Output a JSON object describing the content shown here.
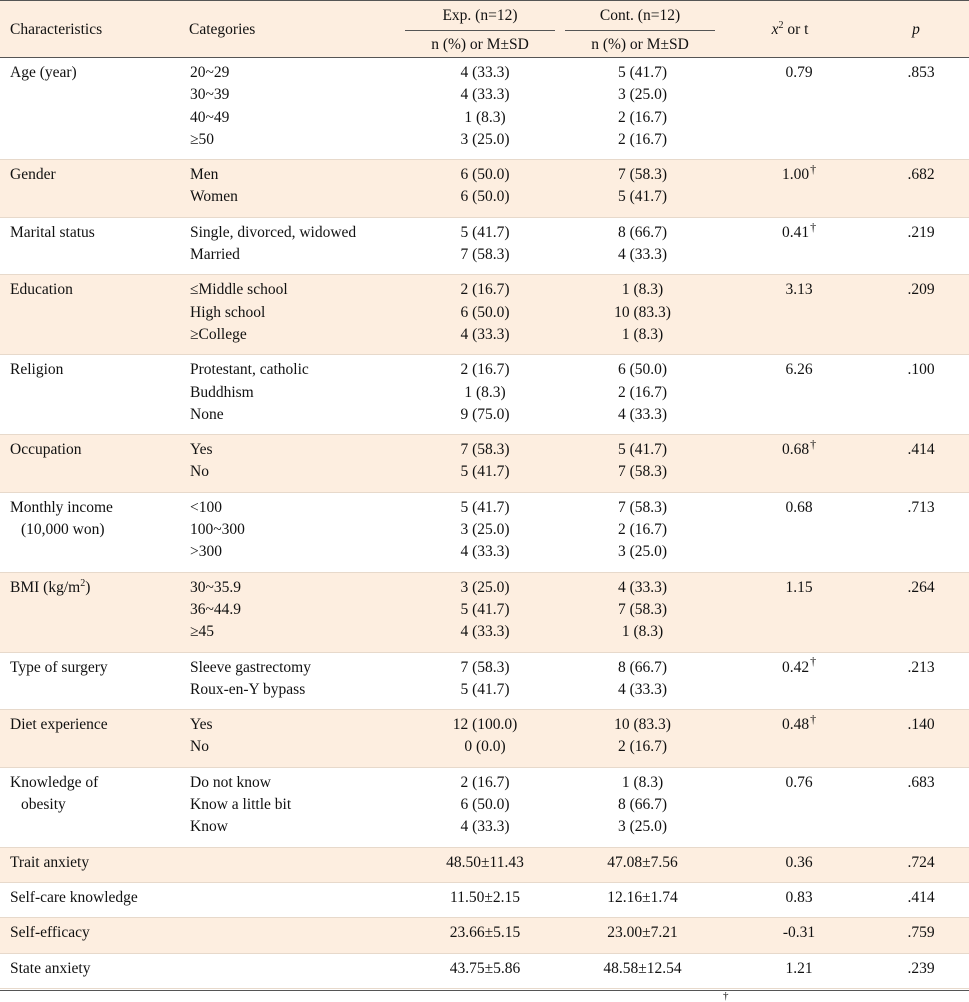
{
  "header": {
    "characteristics": "Characteristics",
    "categories": "Categories",
    "exp": "Exp. (n=12)",
    "cont": "Cont. (n=12)",
    "sub_exp": "n (%) or M±SD",
    "sub_cont": "n (%) or M±SD",
    "stat_x": "x",
    "stat_sup": "2",
    "stat_rest": " or t",
    "p": "p"
  },
  "rows": [
    {
      "char": [
        "Age (year)"
      ],
      "cats": [
        "20~29",
        "30~39",
        "40~49",
        "≥50"
      ],
      "exp": [
        "4 (33.3)",
        "4 (33.3)",
        "1 (8.3)",
        "3 (25.0)"
      ],
      "cont": [
        "5 (41.7)",
        "3 (25.0)",
        "2 (16.7)",
        "2 (16.7)"
      ],
      "stat": "0.79",
      "dagger": "",
      "p": ".853",
      "shade": false
    },
    {
      "char": [
        "Gender"
      ],
      "cats": [
        "Men",
        "Women"
      ],
      "exp": [
        "6 (50.0)",
        "6 (50.0)"
      ],
      "cont": [
        "7 (58.3)",
        "5 (41.7)"
      ],
      "stat": "1.00",
      "dagger": "†",
      "p": ".682",
      "shade": true
    },
    {
      "char": [
        "Marital status"
      ],
      "cats": [
        "Single, divorced, widowed",
        "Married"
      ],
      "exp": [
        "5 (41.7)",
        "7 (58.3)"
      ],
      "cont": [
        "8 (66.7)",
        "4 (33.3)"
      ],
      "stat": "0.41",
      "dagger": "†",
      "p": ".219",
      "shade": false
    },
    {
      "char": [
        "Education"
      ],
      "cats": [
        "≤Middle school",
        "High school",
        "≥College"
      ],
      "exp": [
        "2 (16.7)",
        "6 (50.0)",
        "4 (33.3)"
      ],
      "cont": [
        "1 (8.3)",
        "10 (83.3)",
        "1 (8.3)"
      ],
      "stat": "3.13",
      "dagger": "",
      "p": ".209",
      "shade": true
    },
    {
      "char": [
        "Religion"
      ],
      "cats": [
        "Protestant, catholic",
        "Buddhism",
        "None"
      ],
      "exp": [
        "2 (16.7)",
        "1 (8.3)",
        "9 (75.0)"
      ],
      "cont": [
        "6 (50.0)",
        "2 (16.7)",
        "4 (33.3)"
      ],
      "stat": "6.26",
      "dagger": "",
      "p": ".100",
      "shade": false
    },
    {
      "char": [
        "Occupation"
      ],
      "cats": [
        "Yes",
        "No"
      ],
      "exp": [
        "7 (58.3)",
        "5 (41.7)"
      ],
      "cont": [
        "5 (41.7)",
        "7 (58.3)"
      ],
      "stat": "0.68",
      "dagger": "†",
      "p": ".414",
      "shade": true
    },
    {
      "char": [
        "Monthly income",
        "(10,000 won)"
      ],
      "cats": [
        "<100",
        "100~300",
        ">300"
      ],
      "exp": [
        "5 (41.7)",
        "3 (25.0)",
        "4 (33.3)"
      ],
      "cont": [
        "7 (58.3)",
        "2 (16.7)",
        "3 (25.0)"
      ],
      "stat": "0.68",
      "dagger": "",
      "p": ".713",
      "shade": false
    },
    {
      "char": [
        "BMI (kg/m2)"
      ],
      "cats": [
        "30~35.9",
        "36~44.9",
        "≥45"
      ],
      "exp": [
        "3 (25.0)",
        "5 (41.7)",
        "4 (33.3)"
      ],
      "cont": [
        "4 (33.3)",
        "7 (58.3)",
        "1 (8.3)"
      ],
      "stat": "1.15",
      "dagger": "",
      "p": ".264",
      "shade": true
    },
    {
      "char": [
        "Type of surgery"
      ],
      "cats": [
        "Sleeve gastrectomy",
        "Roux-en-Y bypass"
      ],
      "exp": [
        "7 (58.3)",
        "5 (41.7)"
      ],
      "cont": [
        "8 (66.7)",
        "4 (33.3)"
      ],
      "stat": "0.42",
      "dagger": "†",
      "p": ".213",
      "shade": false
    },
    {
      "char": [
        "Diet experience"
      ],
      "cats": [
        "Yes",
        "No"
      ],
      "exp": [
        "12 (100.0)",
        "0 (0.0)"
      ],
      "cont": [
        "10 (83.3)",
        "2 (16.7)"
      ],
      "stat": "0.48",
      "dagger": "†",
      "p": ".140",
      "shade": true
    },
    {
      "char": [
        "Knowledge of",
        "obesity"
      ],
      "cats": [
        "Do not know",
        "Know a little bit",
        "Know"
      ],
      "exp": [
        "2 (16.7)",
        "6 (50.0)",
        "4 (33.3)"
      ],
      "cont": [
        "1 (8.3)",
        "8 (66.7)",
        "3 (25.0)"
      ],
      "stat": "0.76",
      "dagger": "",
      "p": ".683",
      "shade": false
    },
    {
      "char": [
        "Trait anxiety"
      ],
      "cats": [
        ""
      ],
      "exp": [
        "48.50±11.43"
      ],
      "cont": [
        "47.08±7.56"
      ],
      "stat": "0.36",
      "dagger": "",
      "p": ".724",
      "shade": true
    },
    {
      "char": [
        "Self-care knowledge"
      ],
      "cats": [
        ""
      ],
      "exp": [
        "11.50±2.15"
      ],
      "cont": [
        "12.16±1.74"
      ],
      "stat": "0.83",
      "dagger": "",
      "p": ".414",
      "shade": false
    },
    {
      "char": [
        "Self-efficacy"
      ],
      "cats": [
        ""
      ],
      "exp": [
        "23.66±5.15"
      ],
      "cont": [
        "23.00±7.21"
      ],
      "stat": "-0.31",
      "dagger": "",
      "p": ".759",
      "shade": true
    },
    {
      "char": [
        "State anxiety"
      ],
      "cats": [
        ""
      ],
      "exp": [
        "43.75±5.86"
      ],
      "cont": [
        "48.58±12.54"
      ],
      "stat": "1.21",
      "dagger": "",
      "p": ".239",
      "shade": false
    }
  ],
  "footnote_mark": "†"
}
